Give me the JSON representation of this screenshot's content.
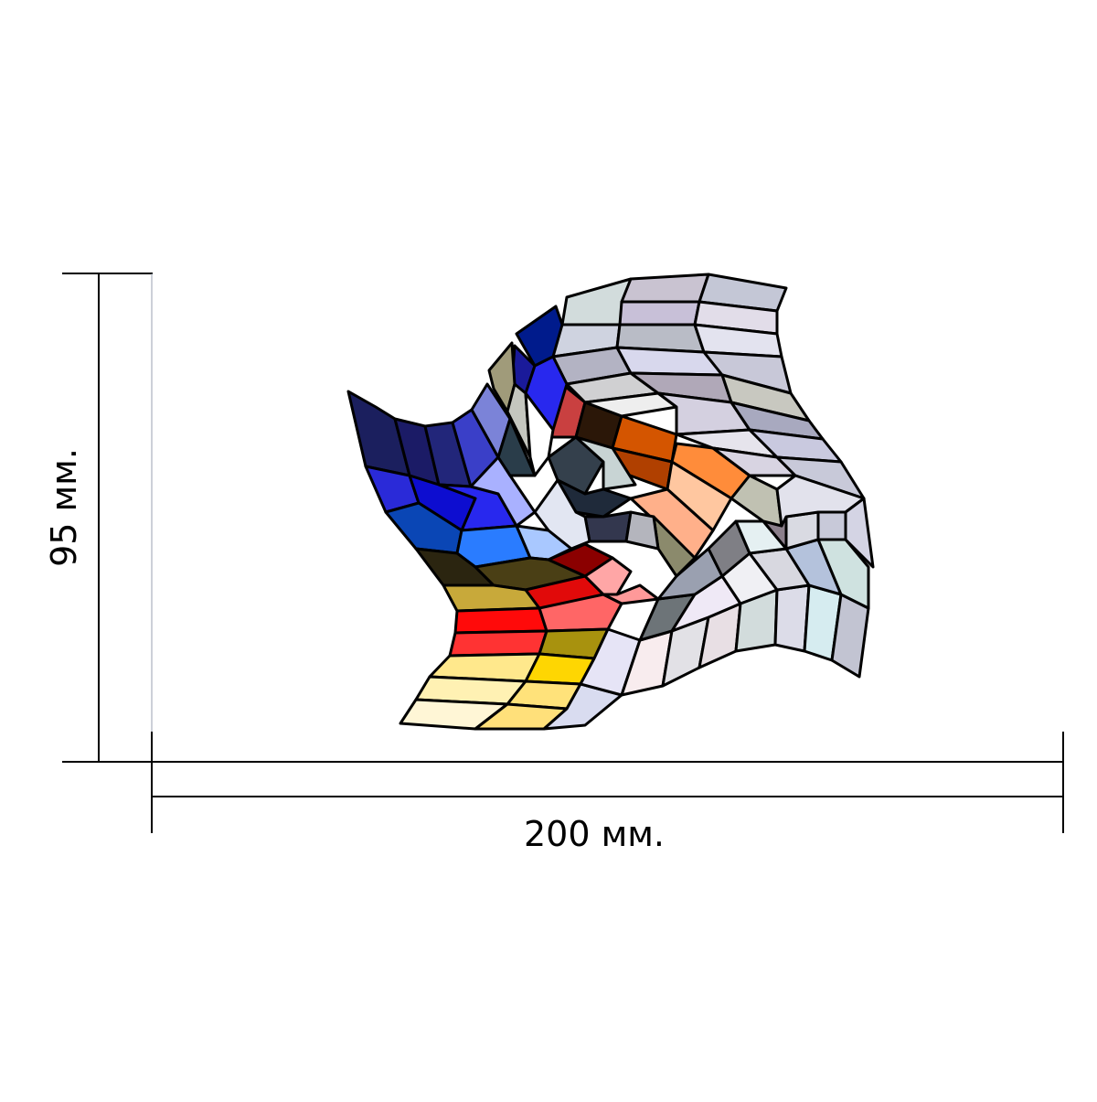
{
  "dimensions": {
    "width_label": "200 мм.",
    "height_label": "95 мм."
  },
  "colors": {
    "line": "#000000",
    "background": "#ffffff",
    "blues": [
      "#1b1f5e",
      "#2a2ad8",
      "#0d0dd0",
      "#0a46b5",
      "#2a7cff",
      "#6e7fe0",
      "#a9b1ff"
    ],
    "reds": [
      "#e10a0a",
      "#ff3333",
      "#8b0000",
      "#ff9999",
      "#c94040"
    ],
    "yellows": [
      "#fff1b3",
      "#ffe27a",
      "#fed602",
      "#c8a93a",
      "#a8920e"
    ],
    "oranges": [
      "#ff8c3a",
      "#d45500",
      "#ffc7a0",
      "#2b1708"
    ],
    "neutrals": [
      "#cbd0df",
      "#dedde9",
      "#e8e6ef",
      "#d2dcdc",
      "#b9bcc6",
      "#7f7f85",
      "#c0c1b2",
      "#8b8a6c",
      "#34404c"
    ]
  }
}
